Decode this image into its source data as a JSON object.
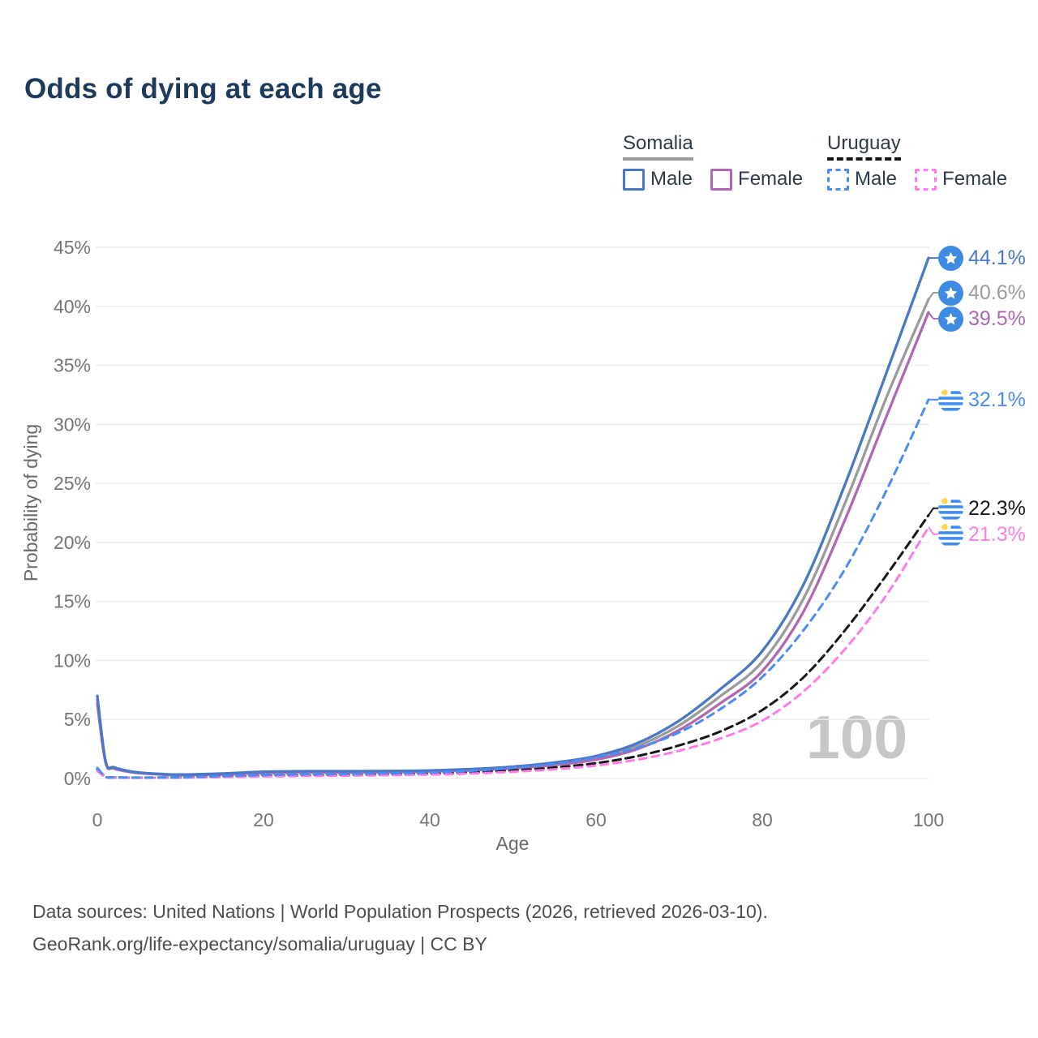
{
  "title": "Odds of dying at each age",
  "watermark": "100",
  "legend": {
    "groups": [
      {
        "label": "Somalia",
        "underline_color": "#9a9a9a",
        "underline_style": "solid",
        "items": [
          {
            "label": "Male",
            "color": "#4a78c6",
            "dashed": false
          },
          {
            "label": "Female",
            "color": "#af69b2",
            "dashed": false
          }
        ]
      },
      {
        "label": "Uruguay",
        "underline_color": "#161616",
        "underline_style": "dashed",
        "items": [
          {
            "label": "Male",
            "color": "#4a8cf5",
            "dashed": true
          },
          {
            "label": "Female",
            "color": "#ff7ce5",
            "dashed": true
          }
        ]
      }
    ]
  },
  "chart_data": {
    "type": "line",
    "title": "Odds of dying at each age",
    "xlabel": "Age",
    "ylabel": "Probability of dying",
    "xlim": [
      0,
      100
    ],
    "ylim": [
      0,
      45
    ],
    "x_ticks": [
      0,
      20,
      40,
      60,
      80,
      100
    ],
    "y_ticks": [
      0,
      5,
      10,
      15,
      20,
      25,
      30,
      35,
      40,
      45
    ],
    "y_tick_suffix": "%",
    "grid": true,
    "legend_position": "top-right",
    "series": [
      {
        "name": "Somalia",
        "sex": "both",
        "slug": "somalia-both",
        "color": "#9b9b9b",
        "dash": "",
        "flag": "somalia",
        "end_label": "40.6%",
        "points": [
          [
            0,
            6.7
          ],
          [
            1,
            1.4
          ],
          [
            2,
            0.9
          ],
          [
            4,
            0.57
          ],
          [
            6,
            0.43
          ],
          [
            8,
            0.35
          ],
          [
            10,
            0.31
          ],
          [
            15,
            0.39
          ],
          [
            20,
            0.52
          ],
          [
            25,
            0.57
          ],
          [
            30,
            0.57
          ],
          [
            35,
            0.58
          ],
          [
            40,
            0.63
          ],
          [
            45,
            0.74
          ],
          [
            50,
            0.93
          ],
          [
            55,
            1.25
          ],
          [
            60,
            1.75
          ],
          [
            65,
            2.75
          ],
          [
            70,
            4.5
          ],
          [
            75,
            7.0
          ],
          [
            80,
            9.9
          ],
          [
            85,
            15.3
          ],
          [
            90,
            23.4
          ],
          [
            95,
            32.4
          ],
          [
            100,
            40.6
          ]
        ]
      },
      {
        "name": "Somalia Female",
        "sex": "female",
        "slug": "somalia-female",
        "color": "#af69b2",
        "dash": "",
        "flag": "somalia",
        "end_label": "39.5%",
        "points": [
          [
            0,
            6.35
          ],
          [
            1,
            1.35
          ],
          [
            2,
            0.85
          ],
          [
            4,
            0.54
          ],
          [
            6,
            0.41
          ],
          [
            8,
            0.33
          ],
          [
            10,
            0.29
          ],
          [
            15,
            0.36
          ],
          [
            20,
            0.47
          ],
          [
            25,
            0.52
          ],
          [
            30,
            0.53
          ],
          [
            35,
            0.54
          ],
          [
            40,
            0.59
          ],
          [
            45,
            0.69
          ],
          [
            50,
            0.86
          ],
          [
            55,
            1.15
          ],
          [
            60,
            1.6
          ],
          [
            65,
            2.5
          ],
          [
            70,
            4.1
          ],
          [
            75,
            6.4
          ],
          [
            80,
            9.1
          ],
          [
            85,
            14.2
          ],
          [
            90,
            22.0
          ],
          [
            95,
            30.8
          ],
          [
            100,
            39.5
          ]
        ]
      },
      {
        "name": "Somalia Male",
        "sex": "male",
        "slug": "somalia-male",
        "color": "#4a78c6",
        "dash": "",
        "flag": "somalia",
        "end_label": "44.1%",
        "points": [
          [
            0,
            7.0
          ],
          [
            1,
            1.45
          ],
          [
            2,
            0.95
          ],
          [
            4,
            0.6
          ],
          [
            6,
            0.45
          ],
          [
            8,
            0.37
          ],
          [
            10,
            0.33
          ],
          [
            15,
            0.42
          ],
          [
            20,
            0.57
          ],
          [
            25,
            0.62
          ],
          [
            30,
            0.62
          ],
          [
            35,
            0.63
          ],
          [
            40,
            0.68
          ],
          [
            45,
            0.8
          ],
          [
            50,
            1.0
          ],
          [
            55,
            1.35
          ],
          [
            60,
            1.9
          ],
          [
            65,
            3.0
          ],
          [
            70,
            4.9
          ],
          [
            75,
            7.6
          ],
          [
            80,
            10.8
          ],
          [
            85,
            16.5
          ],
          [
            90,
            25.0
          ],
          [
            95,
            34.5
          ],
          [
            100,
            44.1
          ]
        ]
      },
      {
        "name": "Uruguay",
        "sex": "both",
        "slug": "uruguay-both",
        "color": "#161616",
        "dash": "10 6",
        "flag": "uruguay",
        "end_label": "22.3%",
        "points": [
          [
            0,
            0.75
          ],
          [
            1,
            0.13
          ],
          [
            2,
            0.09
          ],
          [
            4,
            0.07
          ],
          [
            6,
            0.07
          ],
          [
            8,
            0.08
          ],
          [
            10,
            0.09
          ],
          [
            15,
            0.15
          ],
          [
            20,
            0.22
          ],
          [
            25,
            0.26
          ],
          [
            30,
            0.29
          ],
          [
            35,
            0.33
          ],
          [
            40,
            0.39
          ],
          [
            45,
            0.5
          ],
          [
            50,
            0.68
          ],
          [
            55,
            0.93
          ],
          [
            60,
            1.3
          ],
          [
            65,
            1.9
          ],
          [
            70,
            2.8
          ],
          [
            75,
            4.0
          ],
          [
            80,
            5.8
          ],
          [
            85,
            8.6
          ],
          [
            90,
            12.6
          ],
          [
            95,
            17.3
          ],
          [
            100,
            22.3
          ]
        ]
      },
      {
        "name": "Uruguay Female",
        "sex": "female",
        "slug": "uruguay-female",
        "color": "#ff7ce5",
        "dash": "9 7",
        "flag": "uruguay",
        "end_label": "21.3%",
        "points": [
          [
            0,
            0.65
          ],
          [
            1,
            0.11
          ],
          [
            2,
            0.08
          ],
          [
            4,
            0.06
          ],
          [
            6,
            0.06
          ],
          [
            8,
            0.07
          ],
          [
            10,
            0.08
          ],
          [
            15,
            0.12
          ],
          [
            20,
            0.17
          ],
          [
            25,
            0.21
          ],
          [
            30,
            0.24
          ],
          [
            35,
            0.28
          ],
          [
            40,
            0.33
          ],
          [
            45,
            0.42
          ],
          [
            50,
            0.57
          ],
          [
            55,
            0.78
          ],
          [
            60,
            1.1
          ],
          [
            65,
            1.6
          ],
          [
            70,
            2.35
          ],
          [
            75,
            3.4
          ],
          [
            80,
            4.9
          ],
          [
            85,
            7.4
          ],
          [
            90,
            11.0
          ],
          [
            95,
            15.6
          ],
          [
            100,
            21.3
          ]
        ]
      },
      {
        "name": "Uruguay Male",
        "sex": "male",
        "slug": "uruguay-male",
        "color": "#4a8cf5",
        "dash": "9 7",
        "flag": "uruguay",
        "end_label": "32.1%",
        "points": [
          [
            0,
            0.9
          ],
          [
            1,
            0.15
          ],
          [
            2,
            0.1
          ],
          [
            4,
            0.08
          ],
          [
            6,
            0.08
          ],
          [
            8,
            0.09
          ],
          [
            10,
            0.1
          ],
          [
            15,
            0.2
          ],
          [
            20,
            0.3
          ],
          [
            25,
            0.35
          ],
          [
            30,
            0.38
          ],
          [
            35,
            0.43
          ],
          [
            40,
            0.5
          ],
          [
            45,
            0.65
          ],
          [
            50,
            0.9
          ],
          [
            55,
            1.25
          ],
          [
            60,
            1.8
          ],
          [
            65,
            2.6
          ],
          [
            70,
            3.9
          ],
          [
            75,
            5.9
          ],
          [
            80,
            8.6
          ],
          [
            85,
            12.6
          ],
          [
            90,
            17.8
          ],
          [
            95,
            24.5
          ],
          [
            100,
            32.1
          ]
        ]
      }
    ],
    "flag_colors": {
      "somalia_blue": "#3f8be4",
      "somalia_star": "#ffffff",
      "uruguay_stripe": "#3e8ef5",
      "uruguay_sun": "#ffd34d"
    }
  },
  "footer": {
    "line1": "Data sources: United Nations | World Population Prospects (2026, retrieved 2026-03-10).",
    "line2": "GeoRank.org/life-expectancy/somalia/uruguay | CC BY"
  }
}
